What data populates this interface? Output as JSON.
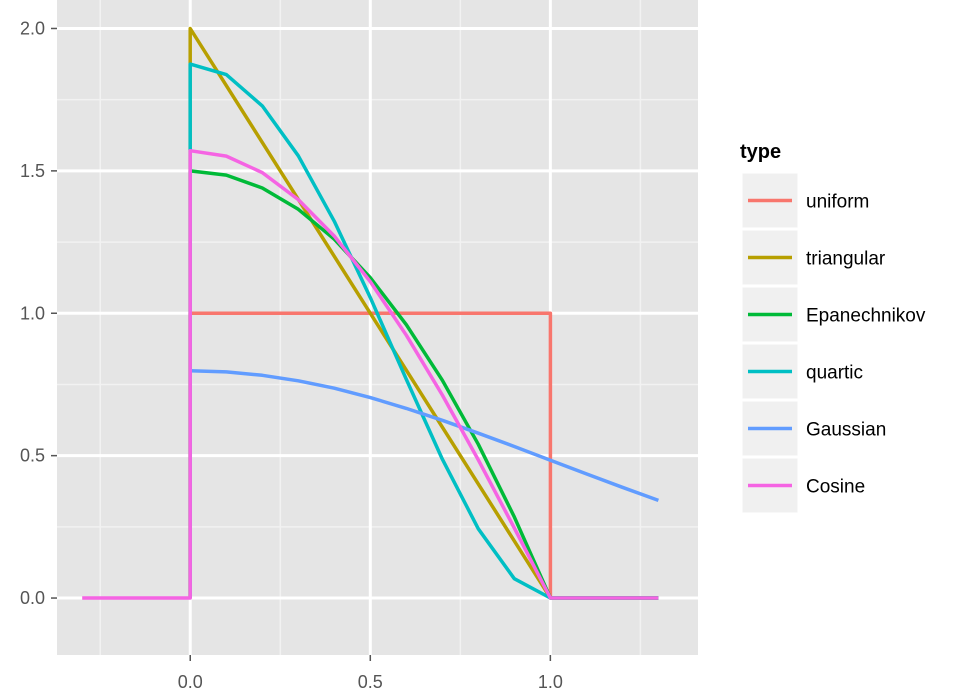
{
  "chart_data": {
    "type": "line",
    "xlim": [
      -0.37,
      1.41
    ],
    "ylim": [
      -0.2,
      2.1
    ],
    "x_ticks": [
      0.0,
      0.5,
      1.0
    ],
    "x_tick_labels": [
      "0.0",
      "0.5",
      "1.0"
    ],
    "y_ticks": [
      0.0,
      0.5,
      1.0,
      1.5,
      2.0
    ],
    "y_tick_labels": [
      "0.0",
      "0.5",
      "1.0",
      "1.5",
      "2.0"
    ],
    "grid": true,
    "legend_position": "right",
    "legend": {
      "title": "type",
      "items": [
        {
          "label": "uniform",
          "color": "#F8766D"
        },
        {
          "label": "triangular",
          "color": "#B79F00"
        },
        {
          "label": "Epanechnikov",
          "color": "#00BA38"
        },
        {
          "label": "quartic",
          "color": "#00BFC4"
        },
        {
          "label": "Gaussian",
          "color": "#619CFF"
        },
        {
          "label": "Cosine",
          "color": "#F564E3"
        }
      ]
    },
    "series": [
      {
        "name": "uniform",
        "color": "#F8766D",
        "points": [
          [
            0,
            0
          ],
          [
            0,
            1.0
          ],
          [
            1.0,
            1.0
          ],
          [
            1.0,
            0
          ],
          [
            1.3,
            0
          ]
        ]
      },
      {
        "name": "triangular",
        "color": "#B79F00",
        "points": [
          [
            0,
            0
          ],
          [
            0,
            2.0
          ],
          [
            1.0,
            0
          ],
          [
            1.3,
            0
          ]
        ]
      },
      {
        "name": "Epanechnikov",
        "color": "#00BA38",
        "points": [
          [
            0,
            0
          ],
          [
            0,
            1.5
          ],
          [
            0.1,
            1.485
          ],
          [
            0.2,
            1.44
          ],
          [
            0.3,
            1.365
          ],
          [
            0.4,
            1.26
          ],
          [
            0.5,
            1.125
          ],
          [
            0.6,
            0.96
          ],
          [
            0.7,
            0.765
          ],
          [
            0.8,
            0.54
          ],
          [
            0.9,
            0.285
          ],
          [
            1.0,
            0
          ],
          [
            1.3,
            0
          ]
        ]
      },
      {
        "name": "quartic",
        "color": "#00BFC4",
        "points": [
          [
            0,
            0
          ],
          [
            0,
            1.875
          ],
          [
            0.1,
            1.838
          ],
          [
            0.2,
            1.728
          ],
          [
            0.3,
            1.553
          ],
          [
            0.4,
            1.323
          ],
          [
            0.5,
            1.055
          ],
          [
            0.6,
            0.768
          ],
          [
            0.7,
            0.488
          ],
          [
            0.8,
            0.243
          ],
          [
            0.9,
            0.068
          ],
          [
            1.0,
            0
          ],
          [
            1.3,
            0
          ]
        ]
      },
      {
        "name": "Gaussian",
        "color": "#619CFF",
        "points": [
          [
            0,
            0.798
          ],
          [
            0.1,
            0.794
          ],
          [
            0.2,
            0.782
          ],
          [
            0.3,
            0.763
          ],
          [
            0.4,
            0.737
          ],
          [
            0.5,
            0.704
          ],
          [
            0.6,
            0.666
          ],
          [
            0.7,
            0.624
          ],
          [
            0.8,
            0.579
          ],
          [
            0.9,
            0.532
          ],
          [
            1.0,
            0.484
          ],
          [
            1.1,
            0.436
          ],
          [
            1.2,
            0.389
          ],
          [
            1.3,
            0.343
          ]
        ]
      },
      {
        "name": "Cosine",
        "color": "#F564E3",
        "points": [
          [
            -0.3,
            0
          ],
          [
            0,
            0
          ],
          [
            0,
            1.571
          ],
          [
            0.1,
            1.552
          ],
          [
            0.2,
            1.494
          ],
          [
            0.3,
            1.399
          ],
          [
            0.4,
            1.271
          ],
          [
            0.5,
            1.111
          ],
          [
            0.6,
            0.923
          ],
          [
            0.7,
            0.713
          ],
          [
            0.8,
            0.485
          ],
          [
            0.9,
            0.246
          ],
          [
            1.0,
            0
          ],
          [
            1.3,
            0
          ]
        ]
      }
    ]
  }
}
